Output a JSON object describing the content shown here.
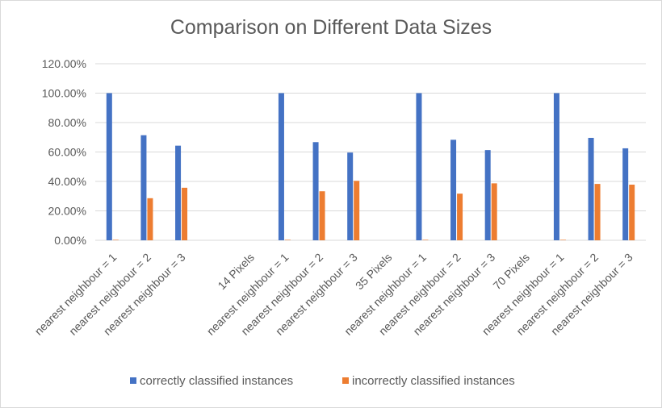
{
  "chart_data": {
    "type": "bar",
    "title": "Comparison on Different Data Sizes",
    "categories": [
      "nearest neighbour = 1",
      "nearest neighbour = 2",
      "nearest neighbour = 3",
      "",
      "14 Pixels",
      "nearest neighbour = 1",
      "nearest neighbour = 2",
      "nearest neighbour = 3",
      "35 Pixels",
      "nearest neighbour = 1",
      "nearest neighbour = 2",
      "nearest neighbour = 3",
      "70 Pixels",
      "nearest neighbour = 1",
      "nearest neighbour = 2",
      "nearest neighbour = 3"
    ],
    "series": [
      {
        "name": "correctly classified instances",
        "color": "#4472C4",
        "values": [
          100.0,
          71.4,
          64.3,
          null,
          null,
          100.0,
          66.7,
          59.6,
          null,
          100.0,
          68.3,
          61.3,
          null,
          100.0,
          69.6,
          62.5
        ]
      },
      {
        "name": "incorrectly classified instances",
        "color": "#ED7D31",
        "values": [
          0.0,
          28.6,
          35.7,
          null,
          null,
          0.0,
          33.3,
          40.4,
          null,
          0.0,
          31.7,
          38.7,
          null,
          0.0,
          38.3,
          37.8
        ]
      }
    ],
    "yticks": [
      "0.00%",
      "20.00%",
      "40.00%",
      "60.00%",
      "80.00%",
      "100.00%",
      "120.00%"
    ],
    "ylim": [
      0,
      120
    ],
    "grid": true,
    "legend": "bottom"
  }
}
